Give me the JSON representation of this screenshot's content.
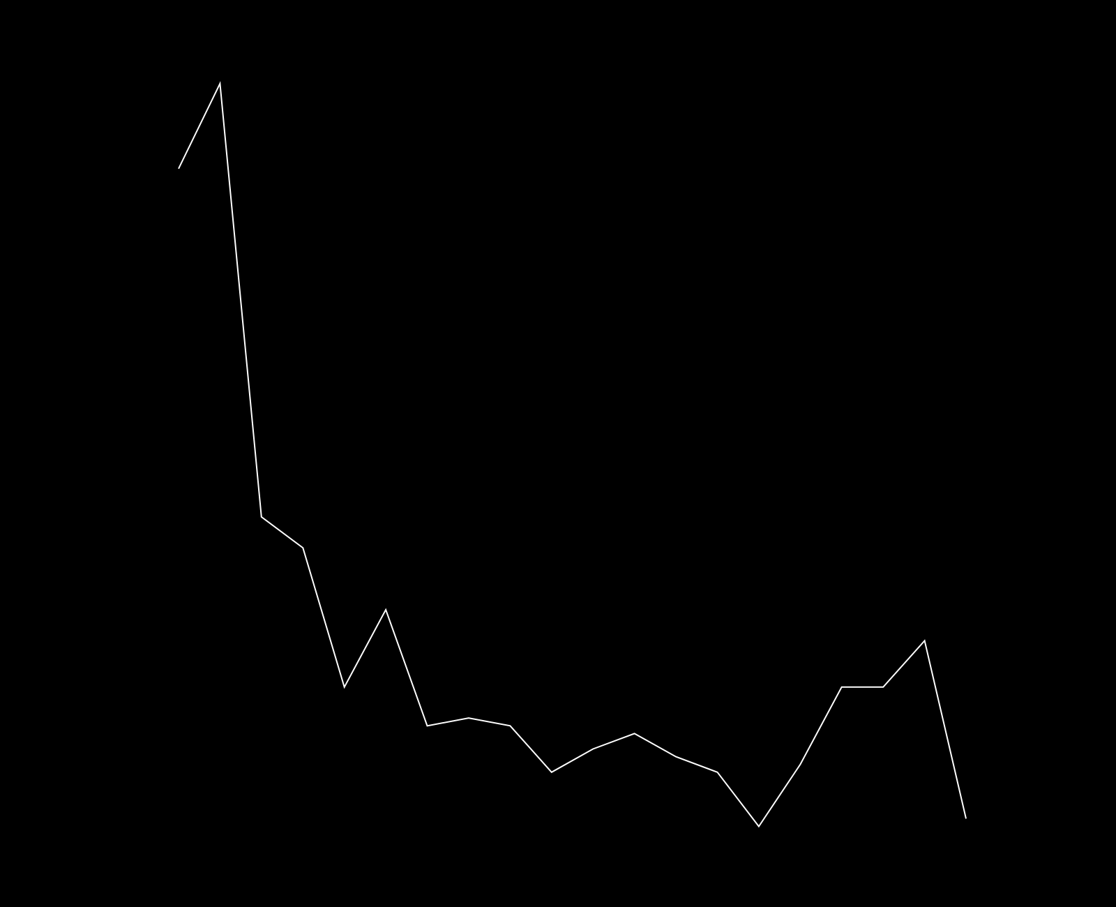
{
  "chart_data": {
    "type": "line",
    "title": "",
    "xlabel": "",
    "ylabel": "",
    "grid": false,
    "legend": false,
    "axes_visible": false,
    "x": [
      1,
      2,
      3,
      4,
      5,
      6,
      7,
      8,
      9,
      10,
      11,
      12,
      13,
      14,
      15,
      16,
      17,
      18,
      19,
      20
    ],
    "xlim": [
      1,
      20
    ],
    "ylim": [
      0,
      100
    ],
    "series": [
      {
        "values": [
          80,
          91,
          35,
          31,
          13,
          23,
          8,
          9,
          8,
          2,
          5,
          7,
          4,
          2,
          -5,
          3,
          13,
          13,
          19,
          -4
        ],
        "color": "#ffffff"
      }
    ],
    "colors": {
      "background": "#000000",
      "line": "#ffffff"
    }
  }
}
